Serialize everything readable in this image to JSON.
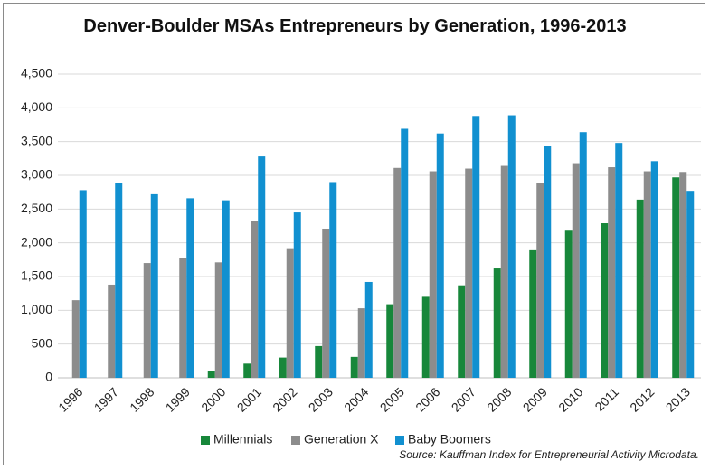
{
  "chart_data": {
    "type": "bar",
    "title": "Denver-Boulder MSAs Entrepreneurs by Generation, 1996-2013",
    "source": "Source: Kauffman Index for Entrepreneurial Activity Microdata.",
    "categories": [
      "1996",
      "1997",
      "1998",
      "1999",
      "2000",
      "2001",
      "2002",
      "2003",
      "2004",
      "2005",
      "2006",
      "2007",
      "2008",
      "2009",
      "2010",
      "2011",
      "2012",
      "2013"
    ],
    "series": [
      {
        "name": "Millennials",
        "color": "#17873a",
        "values": [
          0,
          0,
          0,
          0,
          100,
          210,
          300,
          470,
          310,
          1090,
          1200,
          1370,
          1620,
          1890,
          2180,
          2290,
          2640,
          2970
        ]
      },
      {
        "name": "Generation X",
        "color": "#8c8c8c",
        "values": [
          1150,
          1380,
          1700,
          1780,
          1710,
          2320,
          1920,
          2210,
          1030,
          3110,
          3060,
          3100,
          3140,
          2880,
          3180,
          3120,
          3060,
          3050
        ]
      },
      {
        "name": "Baby Boomers",
        "color": "#1190d0",
        "values": [
          2780,
          2880,
          2720,
          2660,
          2630,
          3280,
          2450,
          2900,
          1420,
          3690,
          3620,
          3880,
          3890,
          3430,
          3640,
          3480,
          3210,
          2770
        ]
      }
    ],
    "ylim": [
      0,
      4500
    ],
    "yticks": [
      0,
      500,
      {
        "value": 1000,
        "label": "1,000"
      },
      {
        "value": 1500,
        "label": "1,500"
      },
      {
        "value": 2000,
        "label": "2,000"
      },
      {
        "value": 2500,
        "label": "2,500"
      },
      {
        "value": 3000,
        "label": "3,000"
      },
      {
        "value": 3500,
        "label": "3,500"
      },
      {
        "value": 4000,
        "label": "4,000"
      },
      {
        "value": 4500,
        "label": "4,500"
      }
    ],
    "grid": true,
    "legend": "bottom"
  }
}
